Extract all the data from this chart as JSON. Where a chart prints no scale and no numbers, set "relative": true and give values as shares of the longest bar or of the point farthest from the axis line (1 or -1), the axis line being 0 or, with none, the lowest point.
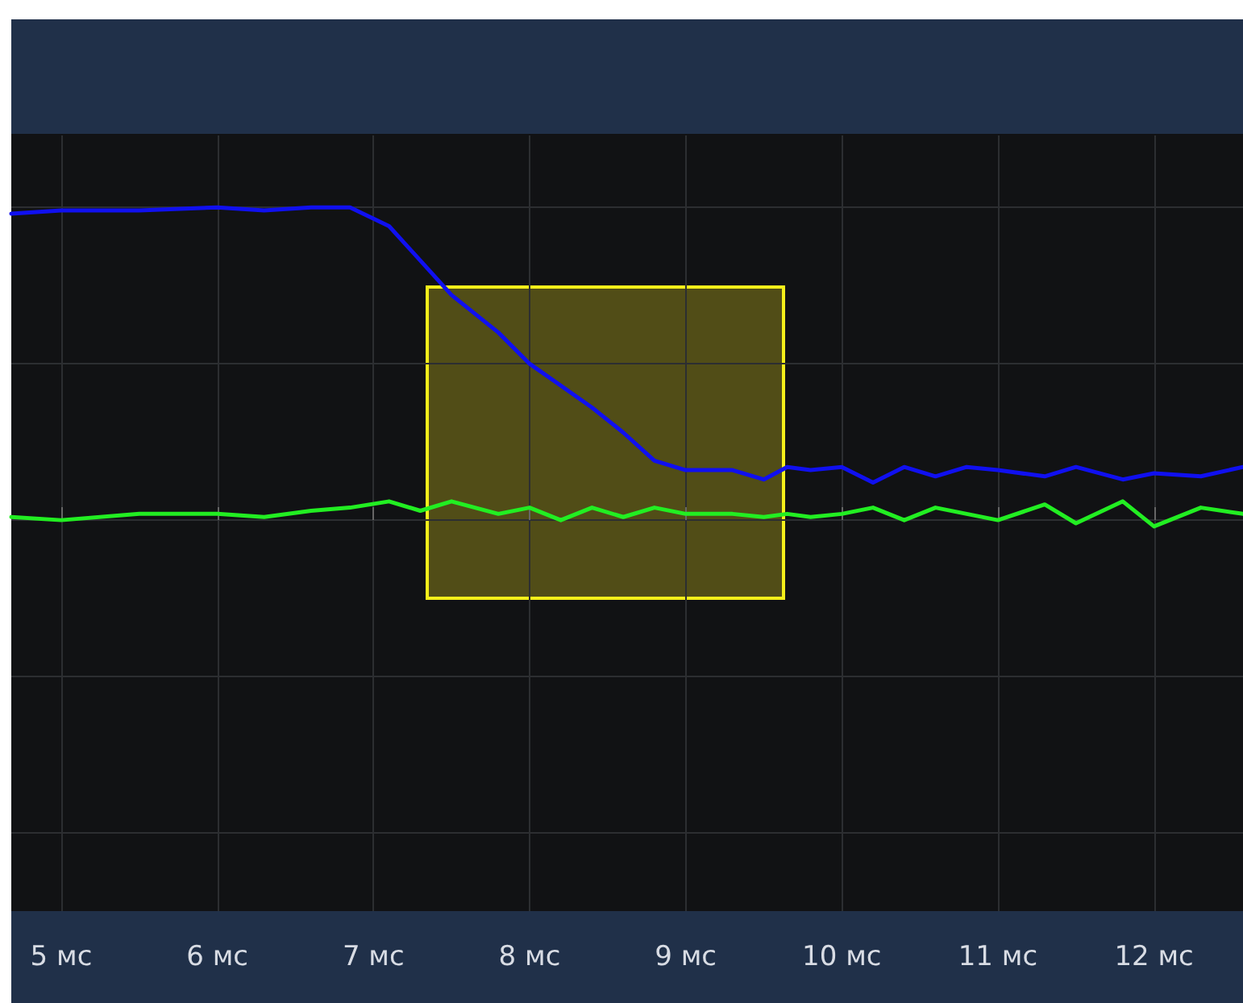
{
  "chart_data": {
    "type": "line",
    "relative": true,
    "x": [
      4.68,
      5.0,
      5.5,
      6.0,
      6.3,
      6.6,
      6.85,
      7.1,
      7.3,
      7.5,
      7.8,
      8.0,
      8.2,
      8.4,
      8.6,
      8.8,
      9.0,
      9.3,
      9.5,
      9.65,
      9.8,
      10.0,
      10.2,
      10.4,
      10.6,
      10.8,
      11.0,
      11.3,
      11.5,
      11.8,
      12.0,
      12.3,
      12.57
    ],
    "series": [
      {
        "color": "#1010f0",
        "values": [
          0.98,
          0.99,
          0.99,
          1.0,
          0.99,
          1.0,
          1.0,
          0.94,
          0.83,
          0.72,
          0.6,
          0.5,
          0.43,
          0.36,
          0.28,
          0.19,
          0.16,
          0.16,
          0.13,
          0.17,
          0.16,
          0.17,
          0.12,
          0.17,
          0.14,
          0.17,
          0.16,
          0.14,
          0.17,
          0.13,
          0.15,
          0.14,
          0.17
        ]
      },
      {
        "color": "#22ee22",
        "values": [
          0.01,
          0.0,
          0.02,
          0.02,
          0.01,
          0.03,
          0.04,
          0.06,
          0.03,
          0.06,
          0.02,
          0.04,
          0.0,
          0.04,
          0.01,
          0.04,
          0.02,
          0.02,
          0.01,
          0.02,
          0.01,
          0.02,
          0.04,
          0.0,
          0.04,
          0.02,
          0.0,
          0.05,
          -0.01,
          0.06,
          -0.02,
          0.04,
          0.02
        ]
      }
    ],
    "xlim": [
      4.68,
      12.57
    ],
    "xticks": [
      {
        "value": 5,
        "label": "5 мс"
      },
      {
        "value": 6,
        "label": "6 мс"
      },
      {
        "value": 7,
        "label": "7 мс"
      },
      {
        "value": 8,
        "label": "8 мс"
      },
      {
        "value": 9,
        "label": "9 мс"
      },
      {
        "value": 10,
        "label": "10 мс"
      },
      {
        "value": 11,
        "label": "11 мс"
      },
      {
        "value": 12,
        "label": "12 мс"
      }
    ],
    "grid": true,
    "marker": "none",
    "line_style": "solid"
  }
}
